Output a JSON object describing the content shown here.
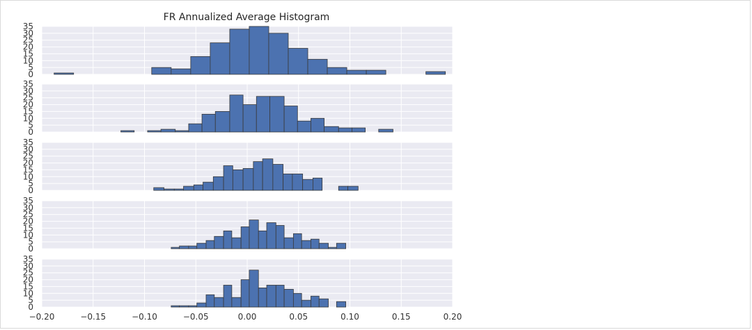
{
  "chart_data": {
    "type": "bar",
    "title": "FR Annualized Average Histogram",
    "xlabel": "",
    "ylabel": "",
    "xlim": [
      -0.2,
      0.2
    ],
    "ylim": [
      0,
      35
    ],
    "x_ticks": [
      "−0.20",
      "−0.15",
      "−0.10",
      "−0.05",
      "0.00",
      "0.05",
      "0.10",
      "0.15",
      "0.20"
    ],
    "x_tick_values": [
      -0.2,
      -0.15,
      -0.1,
      -0.05,
      0.0,
      0.05,
      0.1,
      0.15,
      0.2
    ],
    "y_ticks": [
      "0",
      "5",
      "10",
      "15",
      "20",
      "25",
      "30",
      "35"
    ],
    "y_tick_values": [
      0,
      5,
      10,
      15,
      20,
      25,
      30,
      35
    ],
    "grid": true,
    "bar_color": "#4c72b0",
    "panel_background": "#eaeaf2",
    "grid_color": "#ffffff",
    "panels": [
      {
        "bins": [
          {
            "x0": -0.188,
            "x1": -0.169,
            "count": 1
          },
          {
            "x0": -0.093,
            "x1": -0.074,
            "count": 5
          },
          {
            "x0": -0.074,
            "x1": -0.055,
            "count": 4
          },
          {
            "x0": -0.055,
            "x1": -0.036,
            "count": 13
          },
          {
            "x0": -0.036,
            "x1": -0.017,
            "count": 23
          },
          {
            "x0": -0.017,
            "x1": 0.002,
            "count": 33
          },
          {
            "x0": 0.002,
            "x1": 0.021,
            "count": 35
          },
          {
            "x0": 0.021,
            "x1": 0.04,
            "count": 30
          },
          {
            "x0": 0.04,
            "x1": 0.059,
            "count": 19
          },
          {
            "x0": 0.059,
            "x1": 0.078,
            "count": 11
          },
          {
            "x0": 0.078,
            "x1": 0.097,
            "count": 5
          },
          {
            "x0": 0.097,
            "x1": 0.116,
            "count": 3
          },
          {
            "x0": 0.116,
            "x1": 0.135,
            "count": 3
          },
          {
            "x0": 0.174,
            "x1": 0.193,
            "count": 2
          }
        ]
      },
      {
        "bins": [
          {
            "x0": -0.123,
            "x1": -0.11,
            "count": 1
          },
          {
            "x0": -0.097,
            "x1": -0.084,
            "count": 1
          },
          {
            "x0": -0.084,
            "x1": -0.07,
            "count": 2
          },
          {
            "x0": -0.07,
            "x1": -0.057,
            "count": 1
          },
          {
            "x0": -0.057,
            "x1": -0.044,
            "count": 6
          },
          {
            "x0": -0.044,
            "x1": -0.031,
            "count": 13
          },
          {
            "x0": -0.031,
            "x1": -0.017,
            "count": 15
          },
          {
            "x0": -0.017,
            "x1": -0.004,
            "count": 27
          },
          {
            "x0": -0.004,
            "x1": 0.009,
            "count": 20
          },
          {
            "x0": 0.009,
            "x1": 0.022,
            "count": 26
          },
          {
            "x0": 0.022,
            "x1": 0.036,
            "count": 26
          },
          {
            "x0": 0.036,
            "x1": 0.049,
            "count": 19
          },
          {
            "x0": 0.049,
            "x1": 0.062,
            "count": 8
          },
          {
            "x0": 0.062,
            "x1": 0.075,
            "count": 10
          },
          {
            "x0": 0.075,
            "x1": 0.089,
            "count": 4
          },
          {
            "x0": 0.089,
            "x1": 0.102,
            "count": 3
          },
          {
            "x0": 0.102,
            "x1": 0.115,
            "count": 3
          },
          {
            "x0": 0.128,
            "x1": 0.142,
            "count": 2
          }
        ]
      },
      {
        "bins": [
          {
            "x0": -0.091,
            "x1": -0.081,
            "count": 2
          },
          {
            "x0": -0.081,
            "x1": -0.071,
            "count": 1
          },
          {
            "x0": -0.071,
            "x1": -0.062,
            "count": 1
          },
          {
            "x0": -0.062,
            "x1": -0.052,
            "count": 3
          },
          {
            "x0": -0.052,
            "x1": -0.043,
            "count": 4
          },
          {
            "x0": -0.043,
            "x1": -0.033,
            "count": 6
          },
          {
            "x0": -0.033,
            "x1": -0.023,
            "count": 10
          },
          {
            "x0": -0.023,
            "x1": -0.014,
            "count": 18
          },
          {
            "x0": -0.014,
            "x1": -0.004,
            "count": 15
          },
          {
            "x0": -0.004,
            "x1": 0.006,
            "count": 16
          },
          {
            "x0": 0.006,
            "x1": 0.015,
            "count": 21
          },
          {
            "x0": 0.015,
            "x1": 0.025,
            "count": 23
          },
          {
            "x0": 0.025,
            "x1": 0.035,
            "count": 19
          },
          {
            "x0": 0.035,
            "x1": 0.044,
            "count": 12
          },
          {
            "x0": 0.044,
            "x1": 0.054,
            "count": 12
          },
          {
            "x0": 0.054,
            "x1": 0.064,
            "count": 8
          },
          {
            "x0": 0.064,
            "x1": 0.073,
            "count": 9
          },
          {
            "x0": 0.089,
            "x1": 0.098,
            "count": 3
          },
          {
            "x0": 0.098,
            "x1": 0.108,
            "count": 3
          }
        ]
      },
      {
        "bins": [
          {
            "x0": -0.074,
            "x1": -0.066,
            "count": 1
          },
          {
            "x0": -0.066,
            "x1": -0.057,
            "count": 2
          },
          {
            "x0": -0.057,
            "x1": -0.049,
            "count": 2
          },
          {
            "x0": -0.049,
            "x1": -0.04,
            "count": 4
          },
          {
            "x0": -0.04,
            "x1": -0.032,
            "count": 6
          },
          {
            "x0": -0.032,
            "x1": -0.023,
            "count": 9
          },
          {
            "x0": -0.023,
            "x1": -0.015,
            "count": 13
          },
          {
            "x0": -0.015,
            "x1": -0.006,
            "count": 8
          },
          {
            "x0": -0.006,
            "x1": 0.002,
            "count": 16
          },
          {
            "x0": 0.002,
            "x1": 0.011,
            "count": 21
          },
          {
            "x0": 0.011,
            "x1": 0.019,
            "count": 13
          },
          {
            "x0": 0.019,
            "x1": 0.028,
            "count": 19
          },
          {
            "x0": 0.028,
            "x1": 0.036,
            "count": 17
          },
          {
            "x0": 0.036,
            "x1": 0.045,
            "count": 8
          },
          {
            "x0": 0.045,
            "x1": 0.053,
            "count": 11
          },
          {
            "x0": 0.053,
            "x1": 0.062,
            "count": 6
          },
          {
            "x0": 0.062,
            "x1": 0.07,
            "count": 7
          },
          {
            "x0": 0.07,
            "x1": 0.079,
            "count": 4
          },
          {
            "x0": 0.079,
            "x1": 0.087,
            "count": 1
          },
          {
            "x0": 0.087,
            "x1": 0.096,
            "count": 4
          }
        ]
      },
      {
        "bins": [
          {
            "x0": -0.074,
            "x1": -0.066,
            "count": 1
          },
          {
            "x0": -0.066,
            "x1": -0.057,
            "count": 1
          },
          {
            "x0": -0.057,
            "x1": -0.049,
            "count": 1
          },
          {
            "x0": -0.049,
            "x1": -0.04,
            "count": 3
          },
          {
            "x0": -0.04,
            "x1": -0.032,
            "count": 9
          },
          {
            "x0": -0.032,
            "x1": -0.023,
            "count": 7
          },
          {
            "x0": -0.023,
            "x1": -0.015,
            "count": 16
          },
          {
            "x0": -0.015,
            "x1": -0.006,
            "count": 7
          },
          {
            "x0": -0.006,
            "x1": 0.002,
            "count": 20
          },
          {
            "x0": 0.002,
            "x1": 0.011,
            "count": 27
          },
          {
            "x0": 0.011,
            "x1": 0.019,
            "count": 14
          },
          {
            "x0": 0.019,
            "x1": 0.028,
            "count": 16
          },
          {
            "x0": 0.028,
            "x1": 0.036,
            "count": 16
          },
          {
            "x0": 0.036,
            "x1": 0.045,
            "count": 13
          },
          {
            "x0": 0.045,
            "x1": 0.053,
            "count": 10
          },
          {
            "x0": 0.053,
            "x1": 0.062,
            "count": 5
          },
          {
            "x0": 0.062,
            "x1": 0.07,
            "count": 8
          },
          {
            "x0": 0.07,
            "x1": 0.079,
            "count": 6
          },
          {
            "x0": 0.087,
            "x1": 0.096,
            "count": 4
          }
        ]
      }
    ]
  }
}
